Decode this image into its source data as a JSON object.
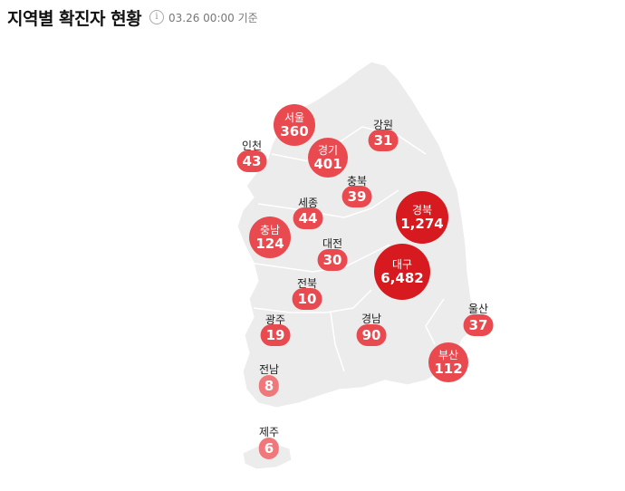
{
  "header": {
    "title": "지역별 확진자 현황",
    "info_icon": "i",
    "basis": "03.26 00:00 기준"
  },
  "colors": {
    "light": "#f0777a",
    "mid": "#e84a4f",
    "dark": "#d61a1f",
    "land": "#ececec"
  },
  "regions": [
    {
      "name": "서울",
      "count": "360"
    },
    {
      "name": "경기",
      "count": "401"
    },
    {
      "name": "강원",
      "count": "31"
    },
    {
      "name": "인천",
      "count": "43"
    },
    {
      "name": "충북",
      "count": "39"
    },
    {
      "name": "세종",
      "count": "44"
    },
    {
      "name": "경북",
      "count": "1,274"
    },
    {
      "name": "충남",
      "count": "124"
    },
    {
      "name": "대전",
      "count": "30"
    },
    {
      "name": "대구",
      "count": "6,482"
    },
    {
      "name": "전북",
      "count": "10"
    },
    {
      "name": "울산",
      "count": "37"
    },
    {
      "name": "광주",
      "count": "19"
    },
    {
      "name": "경남",
      "count": "90"
    },
    {
      "name": "부산",
      "count": "112"
    },
    {
      "name": "전남",
      "count": "8"
    },
    {
      "name": "제주",
      "count": "6"
    }
  ]
}
